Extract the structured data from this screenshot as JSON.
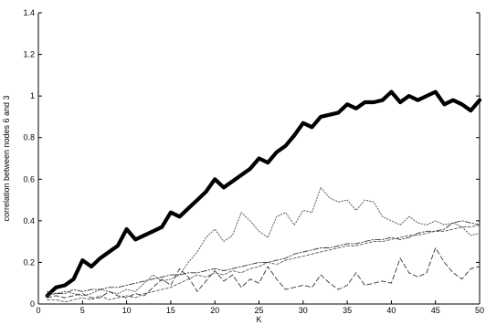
{
  "chart_data": {
    "type": "line",
    "title": "",
    "xlabel": "K",
    "ylabel": "correlation between nodes 6 and 3",
    "xlim": [
      0,
      50
    ],
    "ylim": [
      0,
      1.4
    ],
    "xticks": [
      0,
      5,
      10,
      15,
      20,
      25,
      30,
      35,
      40,
      45,
      50
    ],
    "yticks": [
      0,
      0.2,
      0.4,
      0.6,
      0.8,
      1,
      1.2,
      1.4
    ],
    "xtick_labels": [
      "0",
      "5",
      "10",
      "15",
      "20",
      "25",
      "30",
      "35",
      "40",
      "45",
      "50"
    ],
    "ytick_labels": [
      "0",
      "0.2",
      "0.4",
      "0.6",
      "0.8",
      "1",
      "1.2",
      "1.4"
    ],
    "grid": false,
    "legend": "none",
    "x": [
      1,
      2,
      3,
      4,
      5,
      6,
      7,
      8,
      9,
      10,
      11,
      12,
      13,
      14,
      15,
      16,
      17,
      18,
      19,
      20,
      21,
      22,
      23,
      24,
      25,
      26,
      27,
      28,
      29,
      30,
      31,
      32,
      33,
      34,
      35,
      36,
      37,
      38,
      39,
      40,
      41,
      42,
      43,
      44,
      45,
      46,
      47,
      48,
      49,
      50
    ],
    "series": [
      {
        "style": "thick-solid",
        "color": "#000000",
        "values": [
          0.04,
          0.08,
          0.09,
          0.12,
          0.21,
          0.18,
          0.22,
          0.25,
          0.28,
          0.36,
          0.31,
          0.33,
          0.35,
          0.37,
          0.44,
          0.42,
          0.46,
          0.5,
          0.54,
          0.6,
          0.56,
          0.59,
          0.62,
          0.65,
          0.7,
          0.68,
          0.73,
          0.76,
          0.81,
          0.87,
          0.85,
          0.9,
          0.91,
          0.92,
          0.96,
          0.94,
          0.97,
          0.97,
          0.98,
          1.02,
          0.97,
          1.0,
          0.98,
          1.0,
          1.02,
          0.96,
          0.98,
          0.96,
          0.93,
          0.98
        ]
      },
      {
        "style": "dotted",
        "color": "#555555",
        "values": [
          0.04,
          0.05,
          0.06,
          0.05,
          0.04,
          0.05,
          0.07,
          0.06,
          0.05,
          0.07,
          0.06,
          0.1,
          0.14,
          0.11,
          0.12,
          0.14,
          0.2,
          0.25,
          0.32,
          0.36,
          0.3,
          0.33,
          0.44,
          0.4,
          0.35,
          0.32,
          0.42,
          0.44,
          0.38,
          0.45,
          0.44,
          0.56,
          0.51,
          0.49,
          0.5,
          0.45,
          0.5,
          0.49,
          0.42,
          0.4,
          0.38,
          0.42,
          0.39,
          0.38,
          0.4,
          0.38,
          0.39,
          0.37,
          0.33,
          0.34
        ]
      },
      {
        "style": "dash-dot",
        "color": "#333333",
        "values": [
          0.06,
          0.05,
          0.05,
          0.07,
          0.06,
          0.07,
          0.07,
          0.08,
          0.08,
          0.09,
          0.1,
          0.11,
          0.12,
          0.13,
          0.14,
          0.14,
          0.15,
          0.15,
          0.16,
          0.17,
          0.16,
          0.17,
          0.18,
          0.19,
          0.2,
          0.2,
          0.21,
          0.22,
          0.24,
          0.25,
          0.26,
          0.27,
          0.27,
          0.28,
          0.29,
          0.29,
          0.3,
          0.31,
          0.31,
          0.32,
          0.31,
          0.32,
          0.34,
          0.35,
          0.35,
          0.36,
          0.39,
          0.4,
          0.39,
          0.38
        ]
      },
      {
        "style": "dashed",
        "color": "#333333",
        "values": [
          0.03,
          0.04,
          0.03,
          0.04,
          0.05,
          0.03,
          0.03,
          0.06,
          0.04,
          0.03,
          0.05,
          0.04,
          0.08,
          0.12,
          0.09,
          0.17,
          0.13,
          0.06,
          0.11,
          0.16,
          0.11,
          0.14,
          0.08,
          0.12,
          0.1,
          0.18,
          0.12,
          0.07,
          0.08,
          0.09,
          0.08,
          0.14,
          0.1,
          0.07,
          0.09,
          0.15,
          0.09,
          0.1,
          0.11,
          0.1,
          0.22,
          0.15,
          0.13,
          0.15,
          0.27,
          0.2,
          0.15,
          0.12,
          0.17,
          0.18
        ]
      },
      {
        "style": "dashed-fine",
        "color": "#444444",
        "values": [
          0.02,
          0.02,
          0.01,
          0.02,
          0.03,
          0.02,
          0.04,
          0.02,
          0.03,
          0.04,
          0.03,
          0.05,
          0.06,
          0.07,
          0.08,
          0.1,
          0.12,
          0.14,
          0.13,
          0.15,
          0.14,
          0.16,
          0.15,
          0.17,
          0.18,
          0.2,
          0.19,
          0.21,
          0.22,
          0.23,
          0.24,
          0.25,
          0.26,
          0.27,
          0.28,
          0.28,
          0.29,
          0.3,
          0.3,
          0.31,
          0.32,
          0.33,
          0.33,
          0.34,
          0.35,
          0.35,
          0.36,
          0.37,
          0.37,
          0.38
        ]
      }
    ]
  }
}
